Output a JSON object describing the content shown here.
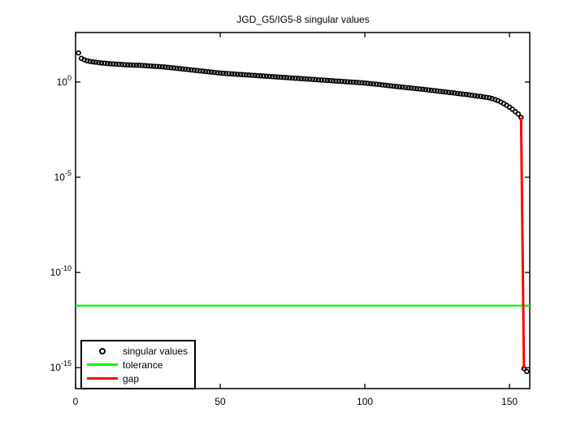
{
  "chart_data": {
    "type": "scatter",
    "title": "JGD_G5/IG5-8 singular values",
    "xlabel": "",
    "ylabel": "",
    "x_ticks": [
      0,
      50,
      100,
      150
    ],
    "y_tick_exponents": [
      0,
      -5,
      -10,
      -15
    ],
    "xlim": [
      0,
      157
    ],
    "ylim_log10": [
      -16.1,
      2.6
    ],
    "grid": false,
    "axis_scale": "semilogy",
    "legend_position": "southwest",
    "colors": {
      "background": "#ffffff",
      "axis": "#000000"
    },
    "series": [
      {
        "name": "singular values",
        "style": "marker",
        "marker": "open-circle",
        "color": "#000000",
        "x_start": 1,
        "values": [
          33.9,
          17.4,
          14.8,
          13.2,
          12.0,
          11.5,
          11.0,
          10.5,
          10.0,
          9.77,
          9.44,
          9.12,
          8.91,
          8.71,
          8.51,
          8.32,
          8.13,
          7.94,
          7.85,
          7.76,
          7.67,
          7.59,
          7.41,
          7.24,
          7.08,
          6.92,
          6.76,
          6.61,
          6.46,
          6.31,
          6.1,
          5.89,
          5.66,
          5.46,
          5.25,
          5.05,
          4.86,
          4.68,
          4.5,
          4.33,
          4.17,
          4.01,
          3.86,
          3.72,
          3.57,
          3.44,
          3.31,
          3.19,
          3.07,
          2.95,
          2.88,
          2.81,
          2.75,
          2.68,
          2.62,
          2.55,
          2.49,
          2.43,
          2.38,
          2.32,
          2.27,
          2.21,
          2.16,
          2.11,
          2.06,
          2.01,
          1.97,
          1.92,
          1.88,
          1.83,
          1.79,
          1.75,
          1.71,
          1.66,
          1.62,
          1.59,
          1.55,
          1.51,
          1.48,
          1.44,
          1.41,
          1.37,
          1.34,
          1.31,
          1.28,
          1.25,
          1.22,
          1.19,
          1.16,
          1.13,
          1.11,
          1.08,
          1.05,
          1.03,
          1.0,
          0.98,
          0.957,
          0.934,
          0.912,
          0.891,
          0.858,
          0.825,
          0.794,
          0.764,
          0.735,
          0.708,
          0.681,
          0.655,
          0.631,
          0.607,
          0.584,
          0.562,
          0.541,
          0.52,
          0.501,
          0.482,
          0.464,
          0.446,
          0.429,
          0.417,
          0.4,
          0.384,
          0.368,
          0.353,
          0.339,
          0.324,
          0.311,
          0.302,
          0.285,
          0.275,
          0.264,
          0.251,
          0.24,
          0.232,
          0.224,
          0.213,
          0.202,
          0.192,
          0.182,
          0.175,
          0.166,
          0.158,
          0.148,
          0.135,
          0.12,
          0.105,
          0.089,
          0.074,
          0.06,
          0.048,
          0.037,
          0.028,
          0.021,
          0.0138,
          9e-16,
          6.3e-16
        ]
      },
      {
        "name": "tolerance",
        "style": "hline",
        "color": "#00ff00",
        "value": 1.8e-12
      },
      {
        "name": "gap",
        "style": "segment",
        "color": "#ff0000",
        "x": [
          154,
          155
        ],
        "y": [
          0.0138,
          9e-16
        ]
      }
    ]
  }
}
